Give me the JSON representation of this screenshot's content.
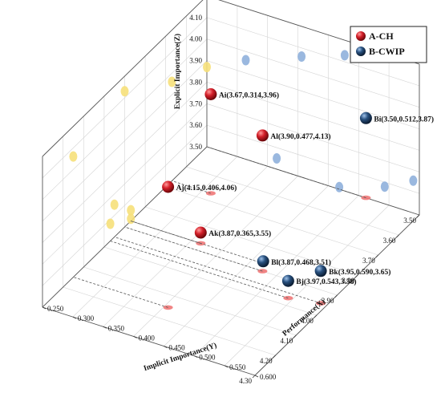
{
  "chart_data": {
    "type": "scatter",
    "subtype": "3d-scatter-with-projections",
    "axes": {
      "x": {
        "label": "Performance(X)",
        "range": [
          3.5,
          4.3
        ],
        "ticks": [
          "3.50",
          "3.60",
          "3.70",
          "3.80",
          "3.90",
          "4.00",
          "4.10",
          "4.20",
          "4.30"
        ]
      },
      "y": {
        "label": "Implicit Importance(Y)",
        "range": [
          0.25,
          0.6
        ],
        "ticks": [
          "0.250",
          "0.300",
          "0.350",
          "0.400",
          "0.450",
          "0.500",
          "0.550",
          "0.600"
        ]
      },
      "z": {
        "label": "Explicit Importance(Z)",
        "range": [
          3.5,
          4.2
        ],
        "ticks": [
          "3.50",
          "3.60",
          "3.70",
          "3.80",
          "3.90",
          "4.00",
          "4.10",
          "4.20"
        ]
      }
    },
    "grid": true,
    "legend": {
      "position": "top-right",
      "entries": [
        "A-CH",
        "B-CWIP"
      ]
    },
    "colors": {
      "A-CH": "#c8141c",
      "B-CWIP": "#1e3d63",
      "proj_xy": "#f07878",
      "proj_xz": "#8fb0dc",
      "proj_yz": "#f6e07a"
    },
    "series": [
      {
        "name": "A-CH",
        "points": [
          {
            "label": "Al(3.90,0.477,4.13)",
            "x": 3.9,
            "y": 0.477,
            "z": 4.13
          },
          {
            "label": "Aj(4.15,0.406,4.06)",
            "x": 4.15,
            "y": 0.406,
            "z": 4.06
          },
          {
            "label": "Ai(3.67,0.314,3.96)",
            "x": 3.67,
            "y": 0.314,
            "z": 3.96
          },
          {
            "label": "Ak(3.87,0.365,3.55)",
            "x": 3.87,
            "y": 0.365,
            "z": 3.55
          }
        ]
      },
      {
        "name": "B-CWIP",
        "points": [
          {
            "label": "Bi(3.50,0.512,3.87)",
            "x": 3.5,
            "y": 0.512,
            "z": 3.87
          },
          {
            "label": "Bk(3.95,0.590,3.65)",
            "x": 3.95,
            "y": 0.59,
            "z": 3.65
          },
          {
            "label": "Bj(3.97,0.543,3.58)",
            "x": 3.97,
            "y": 0.543,
            "z": 3.58
          },
          {
            "label": "Bl(3.87,0.468,3.51)",
            "x": 3.87,
            "y": 0.468,
            "z": 3.51
          }
        ]
      }
    ]
  }
}
